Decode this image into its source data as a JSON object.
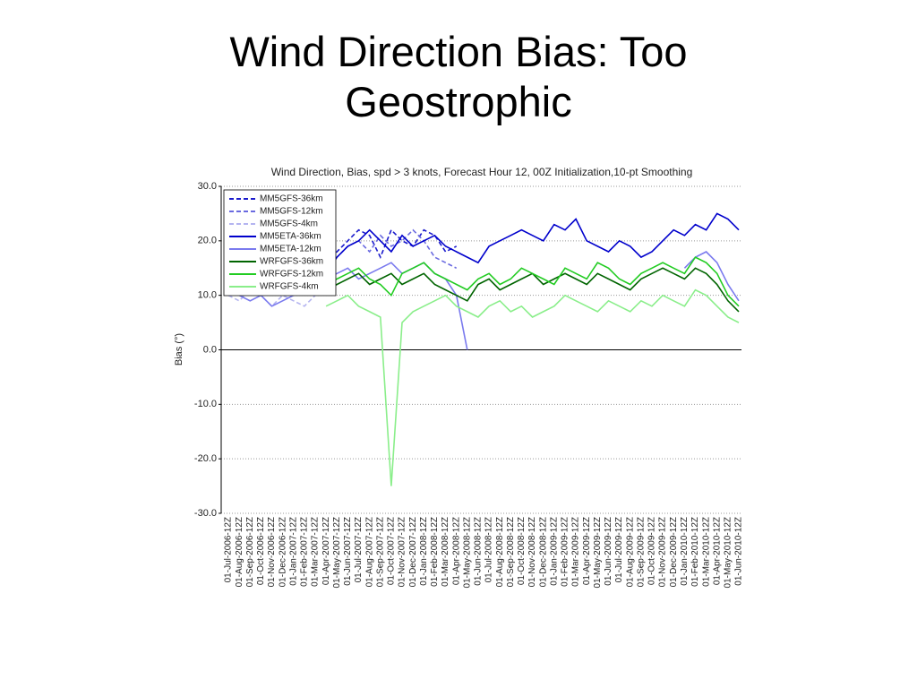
{
  "slide_title": "Wind Direction Bias: Too Geostrophic",
  "chart_data": {
    "type": "line",
    "title": "Wind Direction, Bias, spd > 3 knots, Forecast Hour 12, 00Z Initialization,10-pt Smoothing",
    "y_label": "Bias (°)",
    "categories": [
      "01-Jul-2006-12Z",
      "01-Aug-2006-12Z",
      "01-Sep-2006-12Z",
      "01-Oct-2006-12Z",
      "01-Nov-2006-12Z",
      "01-Dec-2006-12Z",
      "01-Jan-2007-12Z",
      "01-Feb-2007-12Z",
      "01-Mar-2007-12Z",
      "01-Apr-2007-12Z",
      "01-May-2007-12Z",
      "01-Jun-2007-12Z",
      "01-Jul-2007-12Z",
      "01-Aug-2007-12Z",
      "01-Sep-2007-12Z",
      "01-Oct-2007-12Z",
      "01-Nov-2007-12Z",
      "01-Dec-2007-12Z",
      "01-Jan-2008-12Z",
      "01-Feb-2008-12Z",
      "01-Mar-2008-12Z",
      "01-Apr-2008-12Z",
      "01-May-2008-12Z",
      "01-Jun-2008-12Z",
      "01-Jul-2008-12Z",
      "01-Aug-2008-12Z",
      "01-Sep-2008-12Z",
      "01-Oct-2008-12Z",
      "01-Nov-2008-12Z",
      "01-Dec-2008-12Z",
      "01-Jan-2009-12Z",
      "01-Feb-2009-12Z",
      "01-Mar-2009-12Z",
      "01-Apr-2009-12Z",
      "01-May-2009-12Z",
      "01-Jun-2009-12Z",
      "01-Jul-2009-12Z",
      "01-Aug-2009-12Z",
      "01-Sep-2009-12Z",
      "01-Oct-2009-12Z",
      "01-Nov-2009-12Z",
      "01-Dec-2009-12Z",
      "01-Jan-2010-12Z",
      "01-Feb-2010-12Z",
      "01-Mar-2010-12Z",
      "01-Apr-2010-12Z",
      "01-May-2010-12Z",
      "01-Jun-2010-12Z"
    ],
    "series": [
      {
        "name": "MM5GFS-36km",
        "color": "#1a1acc",
        "style": "dashed",
        "values": [
          null,
          null,
          null,
          null,
          null,
          null,
          null,
          null,
          null,
          16,
          18,
          20,
          22,
          21,
          17,
          22,
          20,
          19,
          22,
          21,
          18,
          19,
          null,
          null,
          null,
          null,
          null,
          null,
          null,
          null,
          null,
          null,
          null,
          null,
          null,
          null,
          null,
          null,
          null,
          null,
          null,
          null,
          null,
          null,
          null,
          null,
          null,
          null
        ]
      },
      {
        "name": "MM5GFS-12km",
        "color": "#6a6ae0",
        "style": "dashed",
        "values": [
          null,
          null,
          null,
          null,
          null,
          null,
          10,
          12,
          15,
          14,
          17,
          19,
          20,
          18,
          21,
          19,
          20,
          22,
          20,
          17,
          16,
          15,
          null,
          null,
          null,
          null,
          null,
          null,
          null,
          null,
          null,
          null,
          null,
          null,
          null,
          null,
          null,
          null,
          null,
          null,
          null,
          null,
          null,
          null,
          null,
          null,
          null,
          null
        ]
      },
      {
        "name": "MM5GFS-4km",
        "color": "#b4b4f0",
        "style": "dashed",
        "values": [
          10,
          9,
          11,
          10,
          8,
          10,
          9,
          8,
          10,
          null,
          null,
          null,
          null,
          null,
          null,
          null,
          null,
          null,
          null,
          null,
          null,
          null,
          null,
          null,
          null,
          null,
          null,
          null,
          null,
          null,
          null,
          null,
          null,
          null,
          null,
          null,
          null,
          null,
          null,
          null,
          null,
          null,
          null,
          null,
          null,
          null,
          null,
          null
        ]
      },
      {
        "name": "MM5ETA-36km",
        "color": "#0000cc",
        "style": "solid",
        "values": [
          null,
          null,
          null,
          null,
          null,
          null,
          null,
          null,
          null,
          14,
          17,
          19,
          20,
          22,
          20,
          18,
          21,
          19,
          20,
          21,
          19,
          18,
          17,
          16,
          19,
          20,
          21,
          22,
          21,
          20,
          23,
          22,
          24,
          20,
          19,
          18,
          20,
          19,
          17,
          18,
          20,
          22,
          21,
          23,
          22,
          25,
          24,
          22
        ]
      },
      {
        "name": "MM5ETA-12km",
        "color": "#7a7aee",
        "style": "solid",
        "values": [
          11,
          10,
          9,
          10,
          8,
          9,
          10,
          11,
          12,
          13,
          14,
          15,
          13,
          14,
          15,
          16,
          14,
          15,
          16,
          14,
          13,
          10,
          0,
          null,
          null,
          null,
          null,
          null,
          null,
          null,
          null,
          null,
          null,
          null,
          null,
          null,
          null,
          null,
          null,
          null,
          null,
          null,
          15,
          17,
          18,
          16,
          12,
          9
        ]
      },
      {
        "name": "WRFGFS-36km",
        "color": "#006400",
        "style": "solid",
        "values": [
          null,
          null,
          null,
          null,
          null,
          null,
          null,
          null,
          null,
          11,
          12,
          13,
          14,
          12,
          13,
          14,
          12,
          13,
          14,
          12,
          11,
          10,
          9,
          12,
          13,
          11,
          12,
          13,
          14,
          12,
          13,
          14,
          13,
          12,
          14,
          13,
          12,
          11,
          13,
          14,
          15,
          14,
          13,
          15,
          14,
          12,
          9,
          7
        ]
      },
      {
        "name": "WRFGFS-12km",
        "color": "#22cc22",
        "style": "solid",
        "values": [
          null,
          null,
          null,
          null,
          null,
          null,
          null,
          null,
          null,
          12,
          13,
          14,
          15,
          13,
          12,
          10,
          14,
          15,
          16,
          14,
          13,
          12,
          11,
          13,
          14,
          12,
          13,
          15,
          14,
          13,
          12,
          15,
          14,
          13,
          16,
          15,
          13,
          12,
          14,
          15,
          16,
          15,
          14,
          17,
          16,
          14,
          10,
          8
        ]
      },
      {
        "name": "WRFGFS-4km",
        "color": "#8aee8a",
        "style": "solid",
        "values": [
          null,
          null,
          null,
          null,
          null,
          null,
          null,
          null,
          null,
          8,
          9,
          10,
          8,
          7,
          6,
          -25,
          5,
          7,
          8,
          9,
          10,
          8,
          7,
          6,
          8,
          9,
          7,
          8,
          6,
          7,
          8,
          10,
          9,
          8,
          7,
          9,
          8,
          7,
          9,
          8,
          10,
          9,
          8,
          11,
          10,
          8,
          6,
          5
        ]
      }
    ],
    "ylim": [
      -30,
      30
    ],
    "yticks": [
      {
        "value": -30,
        "label": "-30.0"
      },
      {
        "value": -20,
        "label": "-20.0"
      },
      {
        "value": -10,
        "label": "-10.0"
      },
      {
        "value": 0,
        "label": "0.0"
      },
      {
        "value": 10,
        "label": "10.0"
      },
      {
        "value": 20,
        "label": "20.0"
      },
      {
        "value": 30,
        "label": "30.0"
      }
    ],
    "grid": true,
    "legend": "upper-left"
  }
}
